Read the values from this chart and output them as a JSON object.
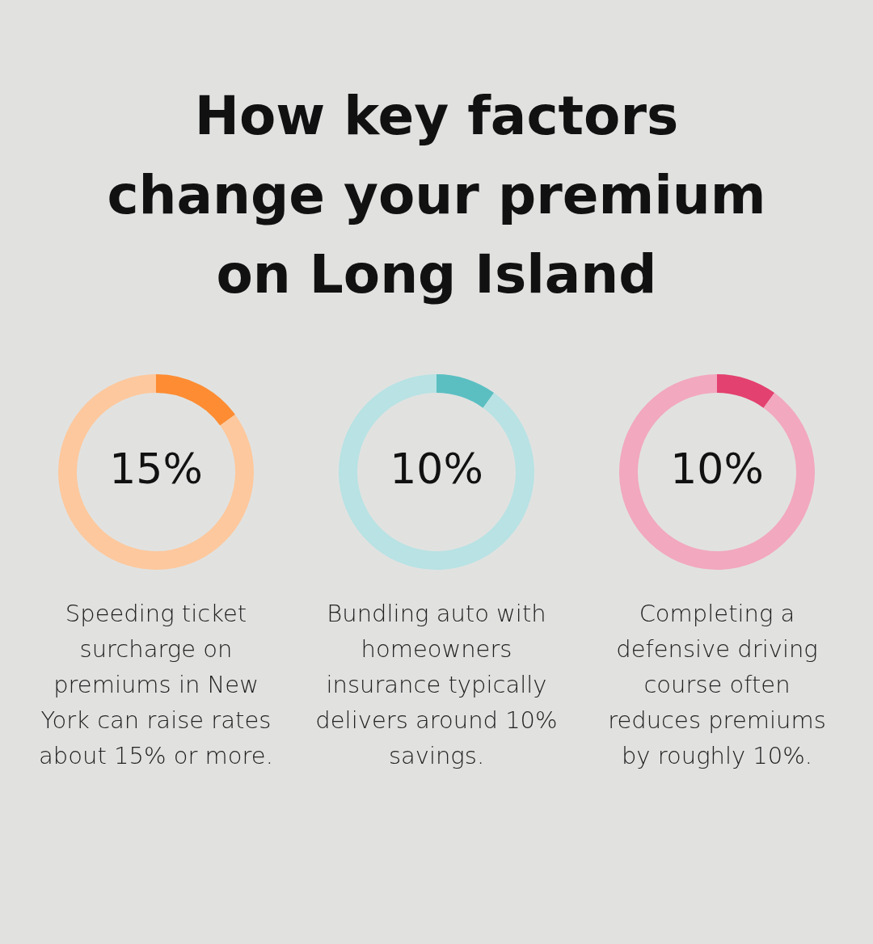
{
  "chart_data": [
    {
      "type": "other",
      "title": "How key factors change your premium on Long Island"
    },
    {
      "type": "donut",
      "categories": [
        null,
        null
      ],
      "values": [
        15,
        85
      ],
      "colors": [
        "#fd8c33",
        "#fdc89d"
      ],
      "value_labels": [
        "15%",
        null
      ],
      "annotations": [
        "Speeding ticket surcharge on premiums in New York can raise rates about 15% or more."
      ]
    },
    {
      "type": "donut",
      "categories": [
        null,
        null
      ],
      "values": [
        10,
        90
      ],
      "colors": [
        "#5bbfc2",
        "#b8e2e4"
      ],
      "value_labels": [
        "10%",
        null
      ],
      "annotations": [
        "Bundling auto with homeowners insurance typically delivers around 10% savings."
      ]
    },
    {
      "type": "donut",
      "categories": [
        null,
        null
      ],
      "values": [
        10,
        90
      ],
      "colors": [
        "#e3416f",
        "#f2a8bf"
      ],
      "value_labels": [
        "10%",
        null
      ],
      "annotations": [
        "Completing a defensive driving course often reduces premiums by roughly 10%."
      ]
    }
  ]
}
